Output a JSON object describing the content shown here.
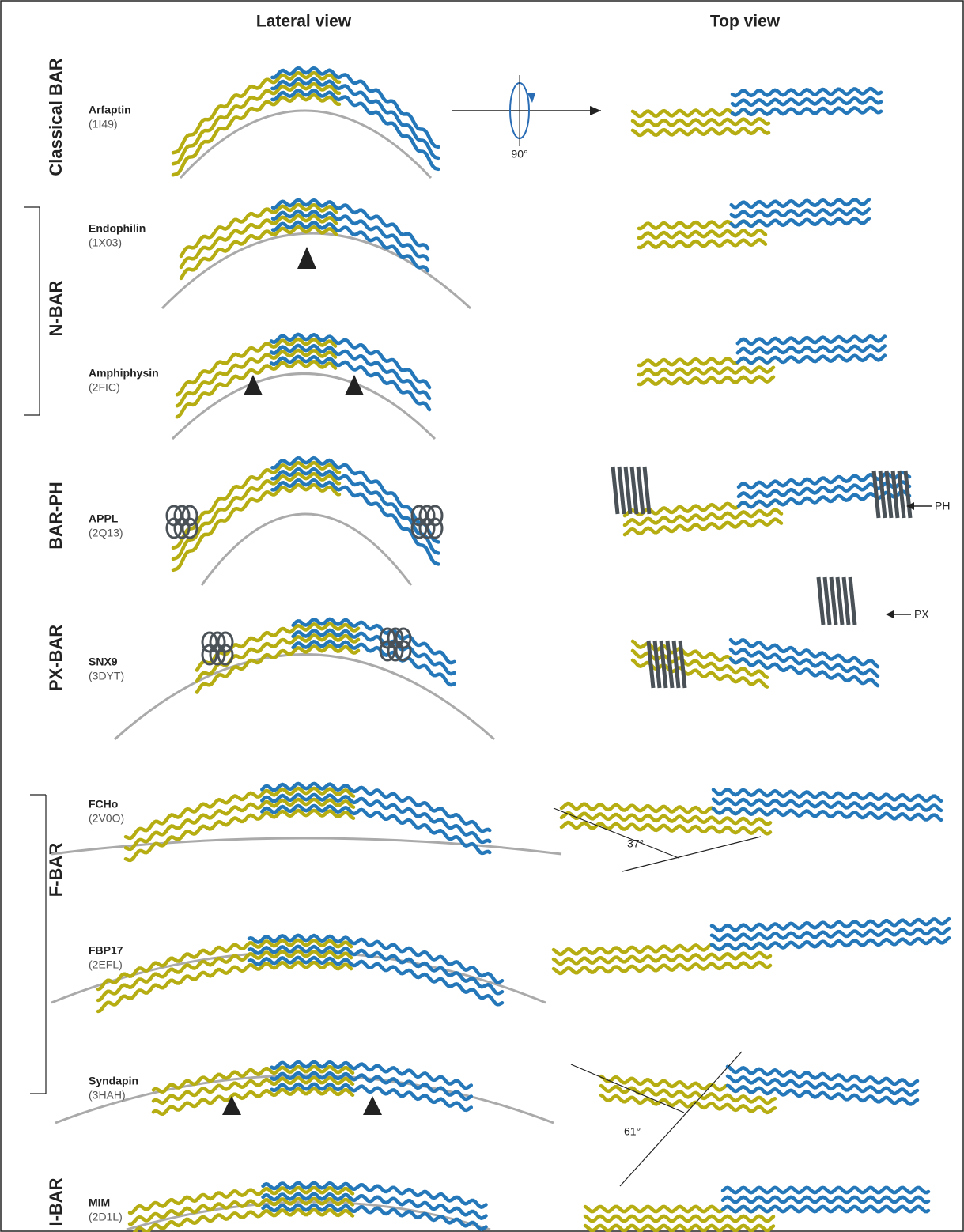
{
  "headers": {
    "lateral": "Lateral view",
    "top": "Top view"
  },
  "groups": [
    {
      "label": "Classical BAR"
    },
    {
      "label": "N-BAR"
    },
    {
      "label": "BAR-PH"
    },
    {
      "label": "PX-BAR"
    },
    {
      "label": "F-BAR"
    },
    {
      "label": "I-BAR"
    }
  ],
  "proteins": [
    {
      "name": "Arfaptin",
      "pdb": "(1I49)"
    },
    {
      "name": "Endophilin",
      "pdb": "(1X03)"
    },
    {
      "name": "Amphiphysin",
      "pdb": "(2FIC)"
    },
    {
      "name": "APPL",
      "pdb": "(2Q13)"
    },
    {
      "name": "SNX9",
      "pdb": "(3DYT)"
    },
    {
      "name": "FCHo",
      "pdb": "(2V0O)"
    },
    {
      "name": "FBP17",
      "pdb": "(2EFL)"
    },
    {
      "name": "Syndapin",
      "pdb": "(3HAH)"
    },
    {
      "name": "MIM",
      "pdb": "(2D1L)"
    }
  ],
  "annotations": {
    "rotation": "90°",
    "ph": "PH",
    "px": "PX",
    "angle_fcho": "37°",
    "angle_syndapin": "61°"
  }
}
